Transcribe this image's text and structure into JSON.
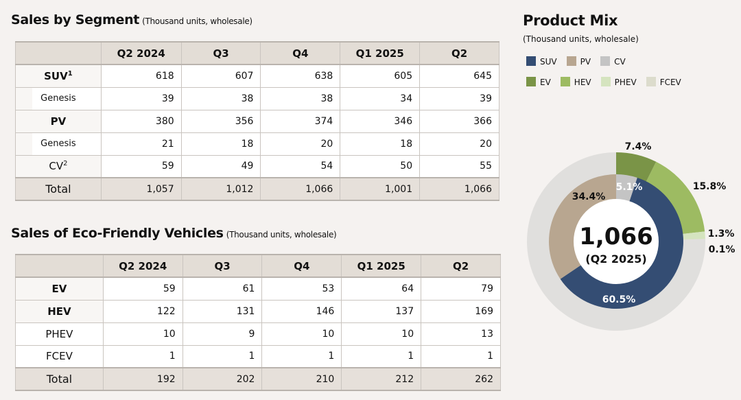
{
  "segment": {
    "title": "Sales by Segment",
    "subtitle": "(Thousand units, wholesale)",
    "headers": [
      "Q2 2024",
      "Q3",
      "Q4",
      "Q1 2025",
      "Q2"
    ],
    "rows": [
      {
        "label": "SUV",
        "sup": "1",
        "values": [
          "618",
          "607",
          "638",
          "605",
          "645"
        ]
      },
      {
        "label": "Genesis",
        "values": [
          "39",
          "38",
          "38",
          "34",
          "39"
        ]
      },
      {
        "label": "PV",
        "values": [
          "380",
          "356",
          "374",
          "346",
          "366"
        ]
      },
      {
        "label": "Genesis",
        "values": [
          "21",
          "18",
          "20",
          "18",
          "20"
        ]
      },
      {
        "label": "CV",
        "sup": "2",
        "values": [
          "59",
          "49",
          "54",
          "50",
          "55"
        ]
      },
      {
        "label": "Total",
        "values": [
          "1,057",
          "1,012",
          "1,066",
          "1,001",
          "1,066"
        ]
      }
    ]
  },
  "eco": {
    "title": "Sales of Eco-Friendly Vehicles",
    "subtitle": "(Thousand units, wholesale)",
    "headers": [
      "Q2 2024",
      "Q3",
      "Q4",
      "Q1 2025",
      "Q2"
    ],
    "rows": [
      {
        "label": "EV",
        "values": [
          "59",
          "61",
          "53",
          "64",
          "79"
        ]
      },
      {
        "label": "HEV",
        "values": [
          "122",
          "131",
          "146",
          "137",
          "169"
        ]
      },
      {
        "label": "PHEV",
        "values": [
          "10",
          "9",
          "10",
          "10",
          "13"
        ]
      },
      {
        "label": "FCEV",
        "values": [
          "1",
          "1",
          "1",
          "1",
          "1"
        ]
      },
      {
        "label": "Total",
        "values": [
          "192",
          "202",
          "210",
          "212",
          "262"
        ]
      }
    ]
  },
  "chart_data": {
    "type": "pie",
    "title": "Product Mix",
    "subtitle": "(Thousand units, wholesale)",
    "center_value": "1,066",
    "center_label": "(Q2 2025)",
    "legend": [
      {
        "name": "SUV",
        "color": "#344d73"
      },
      {
        "name": "PV",
        "color": "#b8a690"
      },
      {
        "name": "CV",
        "color": "#c4c4c4"
      },
      {
        "name": "EV",
        "color": "#7a9447"
      },
      {
        "name": "HEV",
        "color": "#9dbb62"
      },
      {
        "name": "PHEV",
        "color": "#d5e4bf"
      },
      {
        "name": "FCEV",
        "color": "#dcdccc"
      }
    ],
    "inner_ring": [
      {
        "name": "CV",
        "value": 5.1,
        "label": "5.1%",
        "color": "#c4c4c4"
      },
      {
        "name": "SUV",
        "value": 60.5,
        "label": "60.5%",
        "color": "#344d73"
      },
      {
        "name": "PV",
        "value": 34.4,
        "label": "34.4%",
        "color": "#b8a690"
      }
    ],
    "outer_ring": [
      {
        "name": "EV",
        "value": 7.4,
        "label": "7.4%",
        "color": "#7a9447"
      },
      {
        "name": "HEV",
        "value": 15.8,
        "label": "15.8%",
        "color": "#9dbb62"
      },
      {
        "name": "PHEV",
        "value": 1.3,
        "label": "1.3%",
        "color": "#d5e4bf"
      },
      {
        "name": "FCEV",
        "value": 0.1,
        "label": "0.1%",
        "color": "#dcdccc"
      },
      {
        "name": "Other",
        "value": 75.4,
        "label": "",
        "color": "#e0dfdd"
      }
    ]
  }
}
